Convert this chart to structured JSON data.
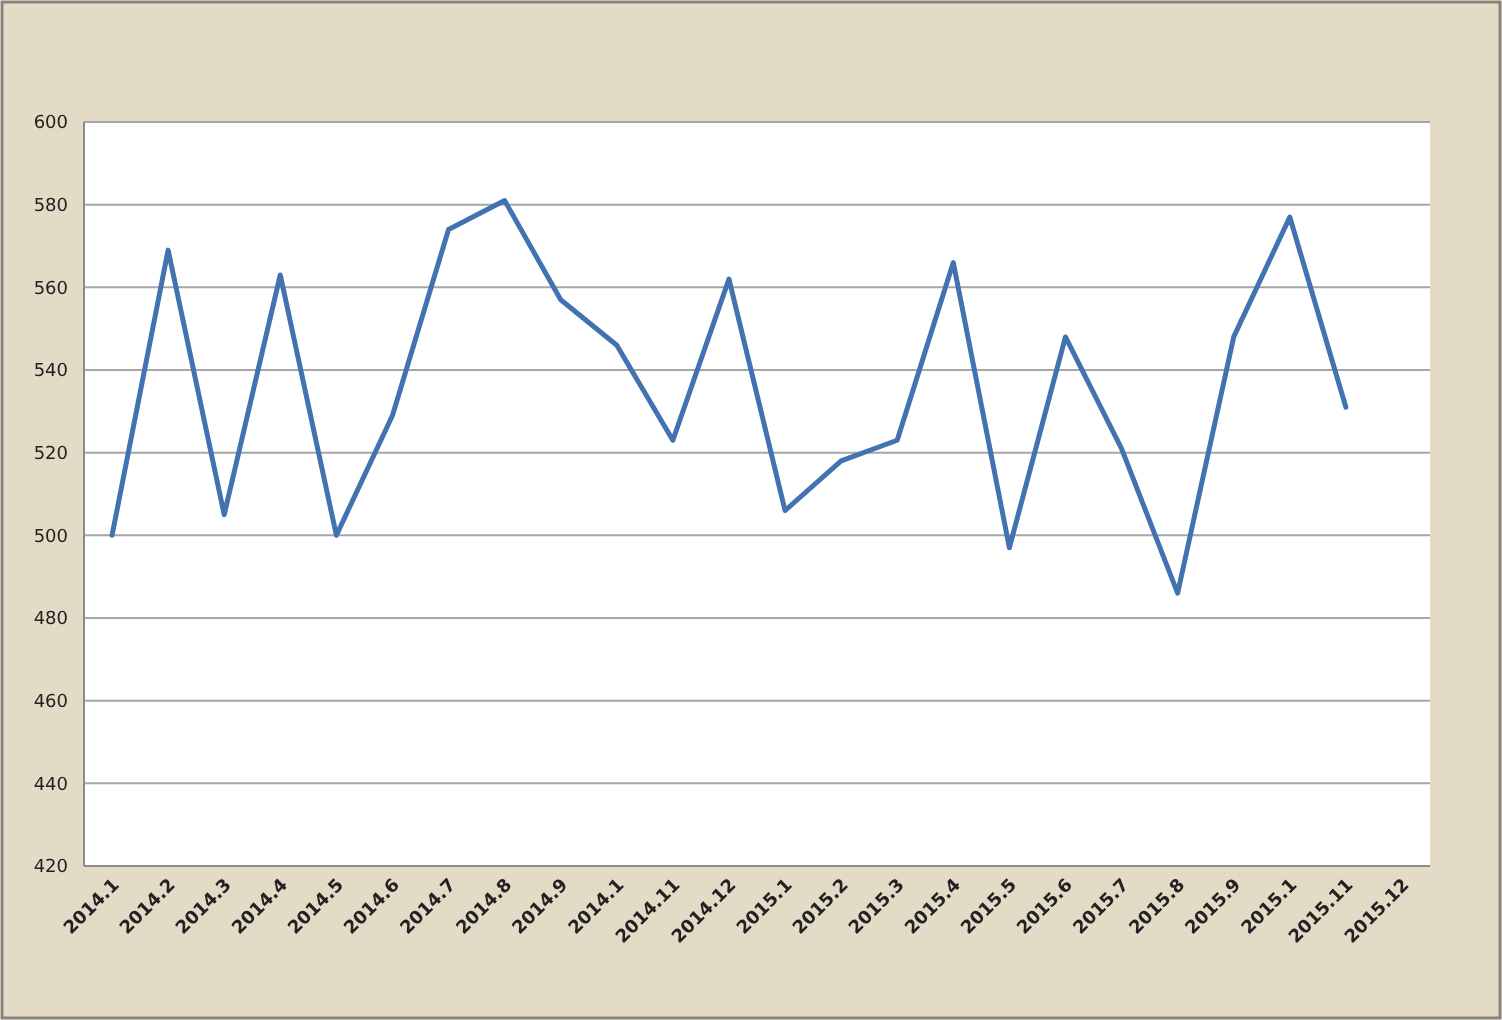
{
  "chart_data": {
    "type": "line",
    "categories": [
      "2014.1",
      "2014.2",
      "2014.3",
      "2014.4",
      "2014.5",
      "2014.6",
      "2014.7",
      "2014.8",
      "2014.9",
      "2014.1",
      "2014.11",
      "2014.12",
      "2015.1",
      "2015.2",
      "2015.3",
      "2015.4",
      "2015.5",
      "2015.6",
      "2015.7",
      "2015.8",
      "2015.9",
      "2015.1",
      "2015.11",
      "2015.12"
    ],
    "series": [
      {
        "color": "#4272b0",
        "values": [
          500,
          569,
          505,
          563,
          500,
          529,
          574,
          581,
          557,
          546,
          523,
          562,
          506,
          518,
          523,
          566,
          497,
          548,
          521,
          486,
          548,
          577,
          531,
          null
        ]
      }
    ],
    "ylim": [
      420,
      600
    ],
    "yticks": [
      420,
      440,
      460,
      480,
      500,
      520,
      540,
      560,
      580,
      600
    ],
    "grid": "y",
    "marker": "none",
    "line_style": "solid"
  }
}
